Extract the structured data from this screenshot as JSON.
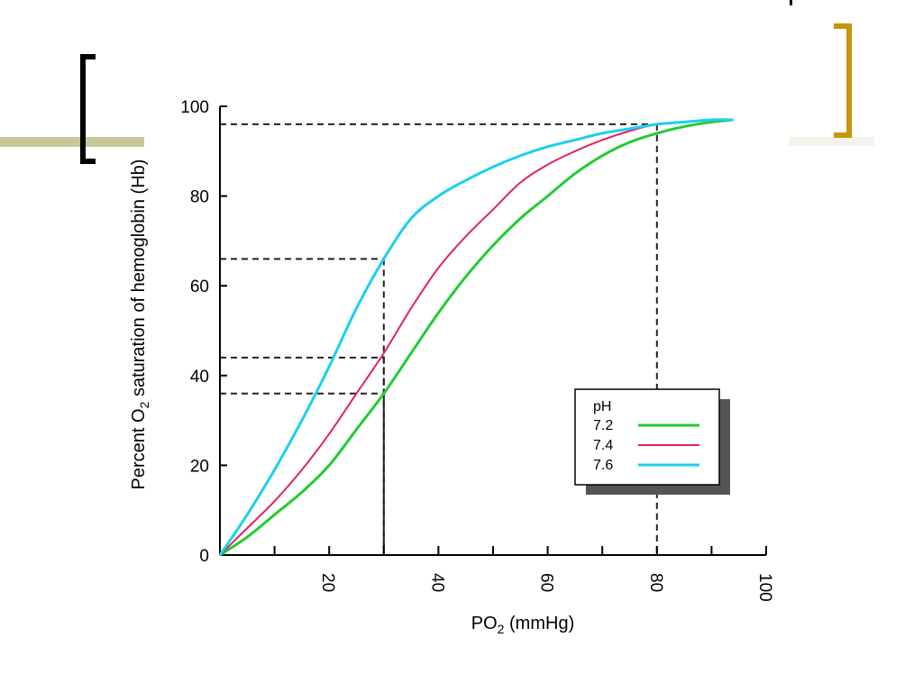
{
  "slide": {
    "bar_color": "#c8c89a",
    "left_bracket_color": "#000000",
    "right_bracket_color": "#c8960a"
  },
  "chart_data": {
    "type": "line",
    "xlabel_main": "PO",
    "xlabel_sub": "2",
    "xlabel_tail": " (mmHg)",
    "ylabel_head": "Percent O",
    "ylabel_sub": "2",
    "ylabel_tail": " saturation of hemoglobin (Hb)",
    "xlim": [
      0,
      100
    ],
    "ylim": [
      0,
      100
    ],
    "x_ticks_labeled": [
      20,
      40,
      60,
      80,
      100
    ],
    "x_ticks_minor": [
      10,
      30,
      50,
      70,
      90
    ],
    "y_ticks_labeled": [
      0,
      20,
      40,
      60,
      80,
      100
    ],
    "legend": {
      "title": "pH",
      "position": "bottom-right"
    },
    "series": [
      {
        "name": "7.2",
        "color": "#22cc33",
        "x": [
          0,
          5,
          10,
          15,
          20,
          25,
          30,
          35,
          40,
          45,
          50,
          55,
          60,
          65,
          70,
          75,
          80,
          85,
          90,
          94
        ],
        "y": [
          0,
          4,
          9,
          14,
          20,
          28,
          36,
          45,
          54,
          62,
          69,
          75,
          80,
          85,
          89,
          92,
          94,
          95.5,
          96.5,
          97
        ]
      },
      {
        "name": "7.4",
        "color": "#e0245a",
        "x": [
          0,
          5,
          10,
          15,
          20,
          25,
          30,
          35,
          40,
          45,
          50,
          55,
          60,
          65,
          70,
          75,
          80,
          85,
          90,
          94
        ],
        "y": [
          0,
          6,
          12,
          19,
          27,
          36,
          45,
          55,
          64,
          71,
          77,
          83,
          87,
          90,
          92.5,
          94.5,
          96,
          96.5,
          97,
          97
        ]
      },
      {
        "name": "7.6",
        "color": "#1ccfee",
        "x": [
          0,
          5,
          10,
          15,
          20,
          25,
          30,
          35,
          40,
          45,
          50,
          55,
          60,
          65,
          70,
          75,
          80,
          85,
          90,
          94
        ],
        "y": [
          0,
          9,
          19,
          30,
          42,
          55,
          66,
          75,
          80,
          83.5,
          86.5,
          89,
          91,
          92.5,
          94,
          95,
          96,
          96.5,
          97,
          97
        ]
      }
    ],
    "reference_lines": [
      {
        "x": 30,
        "y": 66
      },
      {
        "x": 30,
        "y": 44
      },
      {
        "x": 30,
        "y": 36
      },
      {
        "x": 80,
        "y": 96
      }
    ]
  }
}
